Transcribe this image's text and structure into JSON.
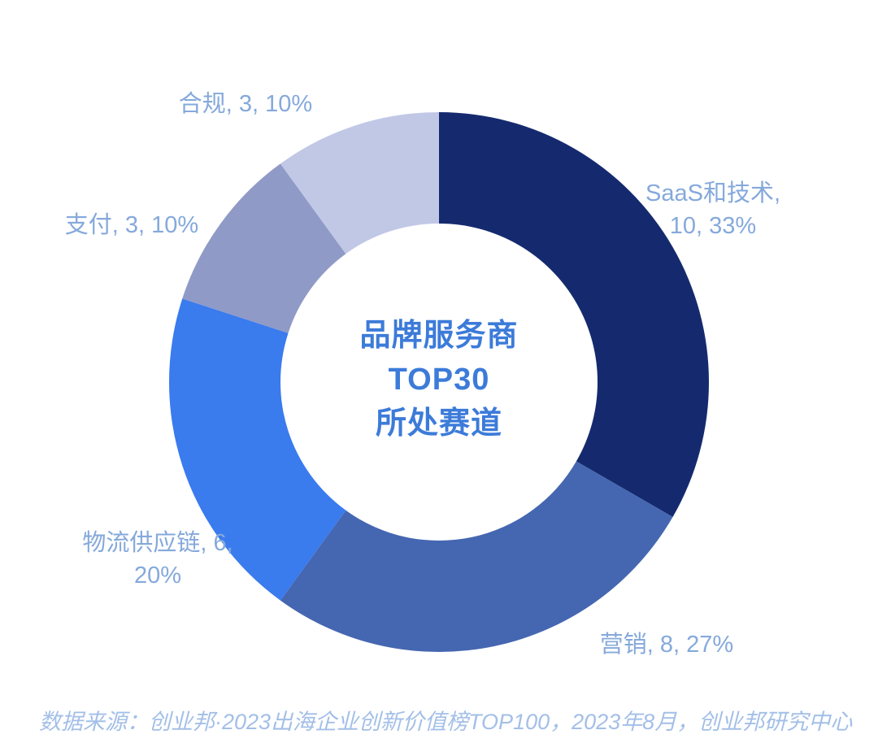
{
  "chart_data": {
    "type": "pie",
    "subtype": "donut",
    "title": "品牌服务商\nTOP30\n所处赛道",
    "total": 30,
    "start_angle_deg": 0,
    "direction": "clockwise",
    "legend_position": "callout-labels",
    "slices": [
      {
        "id": "saas",
        "label": "SaaS和技术",
        "value": 10,
        "percent": "33%",
        "color": "#152a6e",
        "callout": "SaaS和技术,\n10, 33%"
      },
      {
        "id": "yingxiao",
        "label": "营销",
        "value": 8,
        "percent": "27%",
        "color": "#4567b1",
        "callout": "营销, 8, 27%"
      },
      {
        "id": "wuliu",
        "label": "物流供应链",
        "value": 6,
        "percent": "20%",
        "color": "#3a7bee",
        "callout": "物流供应链, 6,\n20%"
      },
      {
        "id": "zhifu",
        "label": "支付",
        "value": 3,
        "percent": "10%",
        "color": "#8f9ac7",
        "callout": "支付, 3, 10%"
      },
      {
        "id": "hegui",
        "label": "合规",
        "value": 3,
        "percent": "10%",
        "color": "#c1c8e6",
        "callout": "合规, 3, 10%"
      }
    ],
    "label_text_color": "#85a9db",
    "center_title_color": "#3c7bd9"
  },
  "source": {
    "text": "数据来源：创业邦·2023出海企业创新价值榜TOP100，2023年8月，创业邦研究中心",
    "color": "#a3bfe7"
  }
}
